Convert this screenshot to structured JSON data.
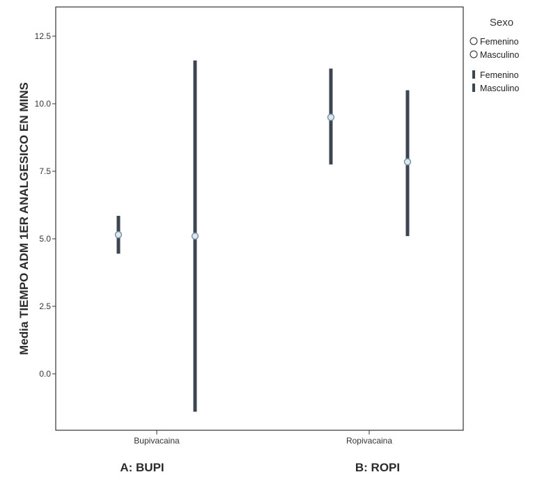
{
  "chart_data": {
    "type": "errorbar",
    "ylabel": "Media TIEMPO ADM 1ER ANALGESICO EN MINS",
    "xlabel": "",
    "ylim": [
      -2.0,
      13.6
    ],
    "yticks": [
      0.0,
      2.5,
      5.0,
      7.5,
      10.0,
      12.5
    ],
    "ytick_labels": [
      "0.0",
      "2.5",
      "5.0",
      "7.5",
      "10.0",
      "12.5"
    ],
    "categories": [
      "Bupivacaina",
      "Ropivacaina"
    ],
    "group_labels": [
      "A: BUPI",
      "B: ROPI"
    ],
    "legend": {
      "title": "Sexo",
      "items": [
        {
          "symbol": "circle",
          "label": "Femenino"
        },
        {
          "symbol": "circle",
          "label": "Masculino"
        },
        {
          "symbol": "bar",
          "label": "Femenino"
        },
        {
          "symbol": "bar",
          "label": "Masculino"
        }
      ]
    },
    "series": [
      {
        "name": "Femenino",
        "means": [
          5.15,
          9.5
        ],
        "lower": [
          4.45,
          7.75
        ],
        "upper": [
          5.85,
          11.3
        ]
      },
      {
        "name": "Masculino",
        "means": [
          5.1,
          7.85
        ],
        "lower": [
          -1.4,
          5.1
        ],
        "upper": [
          11.6,
          10.5
        ]
      }
    ],
    "colors": {
      "bar": "#3c4550",
      "marker": "#6f8fa6"
    }
  }
}
